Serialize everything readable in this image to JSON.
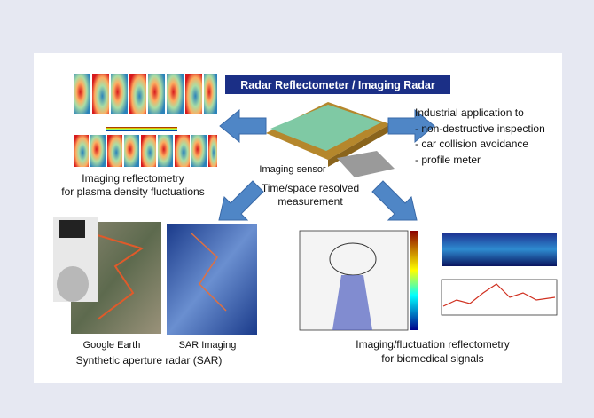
{
  "title": "Radar Reflectometer / Imaging Radar",
  "industrial": {
    "heading": "Industrial application to",
    "items": [
      "- non-destructive inspection",
      "- car collision avoidance",
      "- profile meter"
    ]
  },
  "plasma": {
    "line1": "Imaging reflectometry",
    "line2": "for plasma density fluctuations"
  },
  "sensor": {
    "label": "Imaging sensor",
    "line1": "Time/space resolved",
    "line2": "measurement"
  },
  "sar": {
    "google": "Google Earth",
    "sar_imaging": "SAR Imaging",
    "caption": "Synthetic aperture radar (SAR)"
  },
  "bio": {
    "line1": "Imaging/fluctuation reflectometry",
    "line2": "for biomedical signals"
  }
}
